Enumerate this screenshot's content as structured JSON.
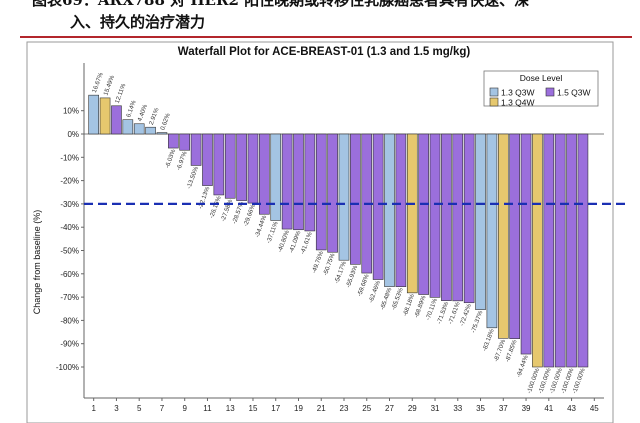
{
  "document": {
    "heading_line1": "图表69：ARX788 对 HER2 阳性晚期或转移性乳腺癌患者具有快速、深",
    "heading_line2": "入、持久的治疗潜力"
  },
  "colors": {
    "q3w_1_3": "#a4c4e3",
    "q4w_1_3": "#e6c86e",
    "q3w_1_5": "#9b6fdc",
    "bar_stroke": "#333333",
    "ref_line": "#1a2fb3",
    "rule": "#b3262c"
  },
  "chart_data": {
    "type": "bar",
    "title": "Waterfall Plot for ACE-BREAST-01 (1.3 and 1.5 mg/kg)",
    "xlabel": "",
    "ylabel": "Change from baseline (%)",
    "ylim": [
      -105,
      20
    ],
    "yticks": [
      10,
      0,
      -10,
      -20,
      -30,
      -40,
      -50,
      -60,
      -70,
      -80,
      -90,
      -100
    ],
    "ytick_labels": [
      "10%",
      "0%",
      "-10%",
      "-20%",
      "-30%",
      "-40%",
      "-50%",
      "-60%",
      "-70%",
      "-80%",
      "-90%",
      "-100%"
    ],
    "xticks": [
      1,
      3,
      5,
      7,
      9,
      11,
      13,
      15,
      17,
      19,
      21,
      23,
      25,
      27,
      29,
      31,
      33,
      35,
      37,
      39,
      41,
      43,
      45
    ],
    "reference_line": -30,
    "legend": {
      "title": "Dose Level",
      "position": "top-right",
      "entries": [
        {
          "key": "q3w_1_3",
          "label": "1.3 Q3W"
        },
        {
          "key": "q3w_1_5",
          "label": "1.5 Q3W"
        },
        {
          "key": "q4w_1_3",
          "label": "1.3 Q4W"
        }
      ]
    },
    "bars": [
      {
        "patient": 1,
        "value": 16.67,
        "label": "16.67%",
        "group": "q3w_1_3"
      },
      {
        "patient": 2,
        "value": 15.49,
        "label": "15.49%",
        "group": "q4w_1_3"
      },
      {
        "patient": 3,
        "value": 12.11,
        "label": "12.11%",
        "group": "q3w_1_5"
      },
      {
        "patient": 4,
        "value": 6.14,
        "label": "6.14%",
        "group": "q3w_1_3"
      },
      {
        "patient": 5,
        "value": 4.4,
        "label": "4.40%",
        "group": "q3w_1_3"
      },
      {
        "patient": 6,
        "value": 2.91,
        "label": "2.91%",
        "group": "q3w_1_3"
      },
      {
        "patient": 7,
        "value": 0.62,
        "label": "0.62%",
        "group": "q3w_1_3"
      },
      {
        "patient": 8,
        "value": -6.03,
        "label": "-6.03%",
        "group": "q3w_1_5"
      },
      {
        "patient": 9,
        "value": -6.97,
        "label": "-6.97%",
        "group": "q3w_1_5"
      },
      {
        "patient": 10,
        "value": -13.5,
        "label": "-13.50%",
        "group": "q3w_1_5"
      },
      {
        "patient": 11,
        "value": -22.13,
        "label": "-22.13%",
        "group": "q3w_1_5"
      },
      {
        "patient": 12,
        "value": -26.16,
        "label": "-26.16%",
        "group": "q3w_1_5"
      },
      {
        "patient": 13,
        "value": -27.58,
        "label": "-27.58%",
        "group": "q3w_1_5"
      },
      {
        "patient": 14,
        "value": -28.57,
        "label": "-28.57%",
        "group": "q3w_1_5"
      },
      {
        "patient": 15,
        "value": -29.66,
        "label": "-29.66%",
        "group": "q3w_1_5"
      },
      {
        "patient": 16,
        "value": -34.44,
        "label": "-34.44%",
        "group": "q3w_1_5"
      },
      {
        "patient": 17,
        "value": -37.11,
        "label": "-37.11%",
        "group": "q3w_1_3"
      },
      {
        "patient": 18,
        "value": -40.8,
        "label": "-40.80%",
        "group": "q3w_1_5"
      },
      {
        "patient": 19,
        "value": -41.09,
        "label": "-41.09%",
        "group": "q3w_1_5"
      },
      {
        "patient": 20,
        "value": -41.61,
        "label": "-41.61%",
        "group": "q3w_1_5"
      },
      {
        "patient": 21,
        "value": -49.76,
        "label": "-49.76%",
        "group": "q3w_1_5"
      },
      {
        "patient": 22,
        "value": -50.75,
        "label": "-50.75%",
        "group": "q3w_1_5"
      },
      {
        "patient": 23,
        "value": -54.17,
        "label": "-54.17%",
        "group": "q3w_1_3"
      },
      {
        "patient": 24,
        "value": -55.93,
        "label": "-55.93%",
        "group": "q3w_1_5"
      },
      {
        "patient": 25,
        "value": -59.68,
        "label": "-59.68%",
        "group": "q3w_1_5"
      },
      {
        "patient": 26,
        "value": -62.46,
        "label": "-62.46%",
        "group": "q3w_1_5"
      },
      {
        "patient": 27,
        "value": -65.48,
        "label": "-65.48%",
        "group": "q3w_1_3"
      },
      {
        "patient": 28,
        "value": -65.53,
        "label": "-65.53%",
        "group": "q3w_1_5"
      },
      {
        "patient": 29,
        "value": -68.18,
        "label": "-68.18%",
        "group": "q4w_1_3"
      },
      {
        "patient": 30,
        "value": -68.89,
        "label": "-68.89%",
        "group": "q3w_1_5"
      },
      {
        "patient": 31,
        "value": -70.11,
        "label": "-70.11%",
        "group": "q3w_1_5"
      },
      {
        "patient": 32,
        "value": -71.53,
        "label": "-71.53%",
        "group": "q3w_1_5"
      },
      {
        "patient": 33,
        "value": -71.61,
        "label": "-71.61%",
        "group": "q3w_1_5"
      },
      {
        "patient": 34,
        "value": -72.42,
        "label": "-72.42%",
        "group": "q3w_1_5"
      },
      {
        "patient": 35,
        "value": -75.37,
        "label": "-75.37%",
        "group": "q3w_1_3"
      },
      {
        "patient": 36,
        "value": -83.18,
        "label": "-83.18%",
        "group": "q3w_1_3"
      },
      {
        "patient": 37,
        "value": -87.7,
        "label": "-87.70%",
        "group": "q4w_1_3"
      },
      {
        "patient": 38,
        "value": -87.85,
        "label": "-87.85%",
        "group": "q3w_1_5"
      },
      {
        "patient": 39,
        "value": -94.44,
        "label": "-94.44%",
        "group": "q3w_1_5"
      },
      {
        "patient": 40,
        "value": -100,
        "label": "-100.00%",
        "group": "q4w_1_3"
      },
      {
        "patient": 41,
        "value": -100,
        "label": "-100.00%",
        "group": "q3w_1_5"
      },
      {
        "patient": 42,
        "value": -100,
        "label": "-100.00%",
        "group": "q3w_1_5"
      },
      {
        "patient": 43,
        "value": -100,
        "label": "-100.00%",
        "group": "q3w_1_5"
      },
      {
        "patient": 44,
        "value": -100,
        "label": "-100.00%",
        "group": "q3w_1_5"
      }
    ]
  }
}
